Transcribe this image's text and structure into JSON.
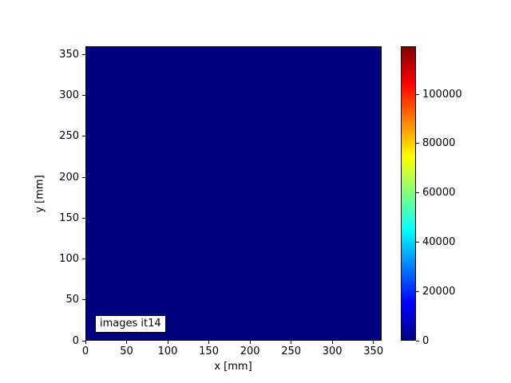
{
  "chart_data": {
    "type": "heatmap",
    "title": "",
    "xlabel": "x [mm]",
    "ylabel": "y [mm]",
    "annotation": "images it14",
    "xlim": [
      0,
      360
    ],
    "ylim": [
      0,
      360
    ],
    "xticks": [
      0,
      50,
      100,
      150,
      200,
      250,
      300,
      350
    ],
    "yticks": [
      0,
      50,
      100,
      150,
      200,
      250,
      300,
      350
    ],
    "values_constant": 0,
    "values_note": "entire 360x360 mm field uniform at colormap minimum (0)",
    "colormap": "jet",
    "vmin": 0,
    "vmax": 119500,
    "grid": false,
    "colorbar": {
      "position": "right",
      "ticks": [
        0,
        20000,
        40000,
        60000,
        80000,
        100000
      ]
    },
    "colors": {
      "field": "#000080",
      "background": "#ffffff",
      "spine": "#000000",
      "jet_stops": [
        {
          "pos": 0.0,
          "color": "#000080"
        },
        {
          "pos": 0.125,
          "color": "#0000ff"
        },
        {
          "pos": 0.375,
          "color": "#00ffff"
        },
        {
          "pos": 0.625,
          "color": "#ffff00"
        },
        {
          "pos": 0.875,
          "color": "#ff0000"
        },
        {
          "pos": 1.0,
          "color": "#800000"
        }
      ]
    }
  }
}
